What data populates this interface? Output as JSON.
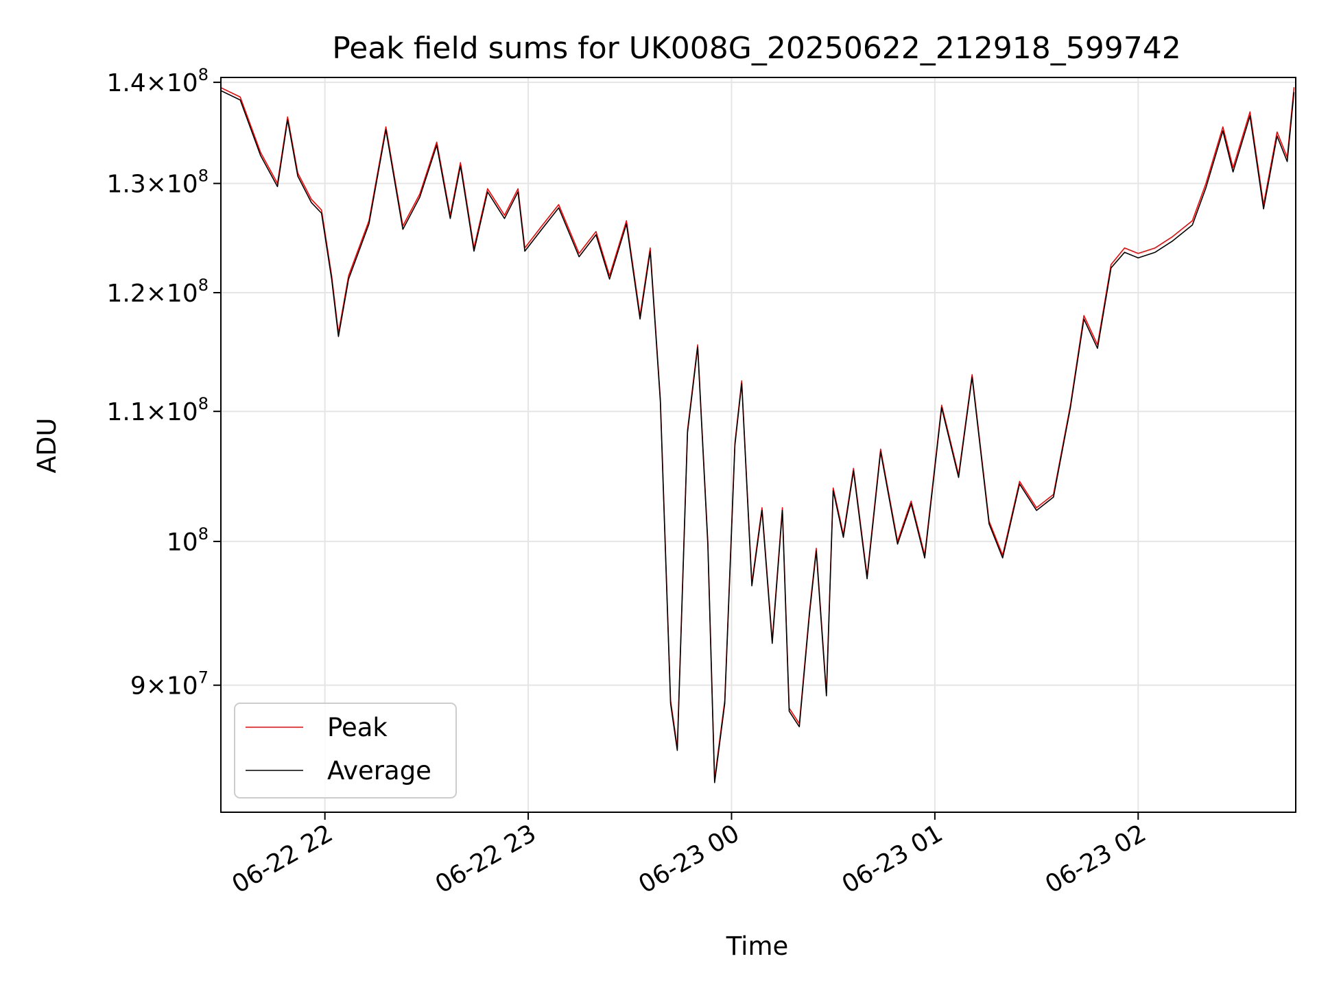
{
  "chart_data": {
    "type": "line",
    "title": "Peak field sums for UK008G_20250622_212918_599742",
    "xlabel": "Time",
    "ylabel": "ADU",
    "y_scale": "log",
    "ylim": [
      82000000,
      140500000
    ],
    "xlim": [
      "2025-06-22 21:29:18",
      "2025-06-23 02:46:30"
    ],
    "grid": true,
    "legend_position": "lower-left",
    "x_ticks": [
      {
        "value": "2025-06-22 22:00",
        "label": "06-22 22"
      },
      {
        "value": "2025-06-22 23:00",
        "label": "06-22 23"
      },
      {
        "value": "2025-06-23 00:00",
        "label": "06-23 00"
      },
      {
        "value": "2025-06-23 01:00",
        "label": "06-23 01"
      },
      {
        "value": "2025-06-23 02:00",
        "label": "06-23 02"
      }
    ],
    "y_ticks": [
      {
        "value": 90000000,
        "mantissa": "9",
        "exponent": "7"
      },
      {
        "value": 100000000,
        "mantissa": "",
        "exponent": "8"
      },
      {
        "value": 110000000,
        "mantissa": "1.1",
        "exponent": "8"
      },
      {
        "value": 120000000,
        "mantissa": "1.2",
        "exponent": "8"
      },
      {
        "value": 130000000,
        "mantissa": "1.3",
        "exponent": "8"
      },
      {
        "value": 140000000,
        "mantissa": "1.4",
        "exponent": "8"
      }
    ],
    "x": [
      "2025-06-22 21:29",
      "2025-06-22 21:35",
      "2025-06-22 21:41",
      "2025-06-22 21:46",
      "2025-06-22 21:49",
      "2025-06-22 21:52",
      "2025-06-22 21:56",
      "2025-06-22 21:59",
      "2025-06-22 22:02",
      "2025-06-22 22:04",
      "2025-06-22 22:07",
      "2025-06-22 22:13",
      "2025-06-22 22:18",
      "2025-06-22 22:23",
      "2025-06-22 22:28",
      "2025-06-22 22:33",
      "2025-06-22 22:37",
      "2025-06-22 22:40",
      "2025-06-22 22:44",
      "2025-06-22 22:48",
      "2025-06-22 22:53",
      "2025-06-22 22:57",
      "2025-06-22 22:59",
      "2025-06-22 23:04",
      "2025-06-22 23:09",
      "2025-06-22 23:15",
      "2025-06-22 23:20",
      "2025-06-22 23:24",
      "2025-06-22 23:29",
      "2025-06-22 23:33",
      "2025-06-22 23:36",
      "2025-06-22 23:39",
      "2025-06-22 23:42",
      "2025-06-22 23:44",
      "2025-06-22 23:47",
      "2025-06-22 23:50",
      "2025-06-22 23:53",
      "2025-06-22 23:55",
      "2025-06-22 23:58",
      "2025-06-23 00:01",
      "2025-06-23 00:03",
      "2025-06-23 00:06",
      "2025-06-23 00:09",
      "2025-06-23 00:12",
      "2025-06-23 00:15",
      "2025-06-23 00:17",
      "2025-06-23 00:20",
      "2025-06-23 00:23",
      "2025-06-23 00:25",
      "2025-06-23 00:28",
      "2025-06-23 00:30",
      "2025-06-23 00:33",
      "2025-06-23 00:36",
      "2025-06-23 00:40",
      "2025-06-23 00:44",
      "2025-06-23 00:49",
      "2025-06-23 00:53",
      "2025-06-23 00:57",
      "2025-06-23 01:02",
      "2025-06-23 01:07",
      "2025-06-23 01:11",
      "2025-06-23 01:16",
      "2025-06-23 01:20",
      "2025-06-23 01:25",
      "2025-06-23 01:30",
      "2025-06-23 01:35",
      "2025-06-23 01:40",
      "2025-06-23 01:44",
      "2025-06-23 01:48",
      "2025-06-23 01:52",
      "2025-06-23 01:56",
      "2025-06-23 02:00",
      "2025-06-23 02:05",
      "2025-06-23 02:10",
      "2025-06-23 02:16",
      "2025-06-23 02:20",
      "2025-06-23 02:25",
      "2025-06-23 02:28",
      "2025-06-23 02:33",
      "2025-06-23 02:37",
      "2025-06-23 02:41",
      "2025-06-23 02:44",
      "2025-06-23 02:46"
    ],
    "series": [
      {
        "name": "Peak",
        "color": "#ff0000",
        "values": [
          139500000,
          138500000,
          133000000,
          130000000,
          136500000,
          131000000,
          128500000,
          127500000,
          121500000,
          116500000,
          121500000,
          126500000,
          135500000,
          126000000,
          129000000,
          134000000,
          127000000,
          132000000,
          124000000,
          129500000,
          127000000,
          129500000,
          124000000,
          126000000,
          128000000,
          123500000,
          125500000,
          121500000,
          126500000,
          118000000,
          124000000,
          111000000,
          89000000,
          86000000,
          108500000,
          115500000,
          100000000,
          84000000,
          89000000,
          107500000,
          112500000,
          97000000,
          102500000,
          93000000,
          102500000,
          88500000,
          87500000,
          95000000,
          99500000,
          89500000,
          104000000,
          100500000,
          105500000,
          97500000,
          107000000,
          100000000,
          103000000,
          99000000,
          110500000,
          105000000,
          113000000,
          101500000,
          99000000,
          104500000,
          102500000,
          103500000,
          110500000,
          118000000,
          115500000,
          122500000,
          124000000,
          123500000,
          124000000,
          125000000,
          126500000,
          130000000,
          135500000,
          131500000,
          137000000,
          128000000,
          135000000,
          132500000,
          139500000
        ]
      },
      {
        "name": "Average",
        "color": "#000000",
        "values": [
          139200000,
          138200000,
          132700000,
          129700000,
          136200000,
          130700000,
          128200000,
          127200000,
          121200000,
          116200000,
          121200000,
          126200000,
          135200000,
          125700000,
          128700000,
          133700000,
          126700000,
          131700000,
          123700000,
          129200000,
          126700000,
          129200000,
          123700000,
          125700000,
          127700000,
          123200000,
          125200000,
          121200000,
          126200000,
          117700000,
          123700000,
          110800000,
          88800000,
          85800000,
          108300000,
          115300000,
          99800000,
          83800000,
          88800000,
          107300000,
          112300000,
          96800000,
          102300000,
          92800000,
          102300000,
          88300000,
          87300000,
          94800000,
          99300000,
          89300000,
          103800000,
          100300000,
          105300000,
          97300000,
          106800000,
          99800000,
          102800000,
          98800000,
          110300000,
          104800000,
          112800000,
          101300000,
          98800000,
          104300000,
          102300000,
          103300000,
          110300000,
          117700000,
          115200000,
          122200000,
          123600000,
          123100000,
          123600000,
          124600000,
          126100000,
          129600000,
          135100000,
          131100000,
          136600000,
          127600000,
          134600000,
          132100000,
          139000000
        ]
      }
    ]
  }
}
